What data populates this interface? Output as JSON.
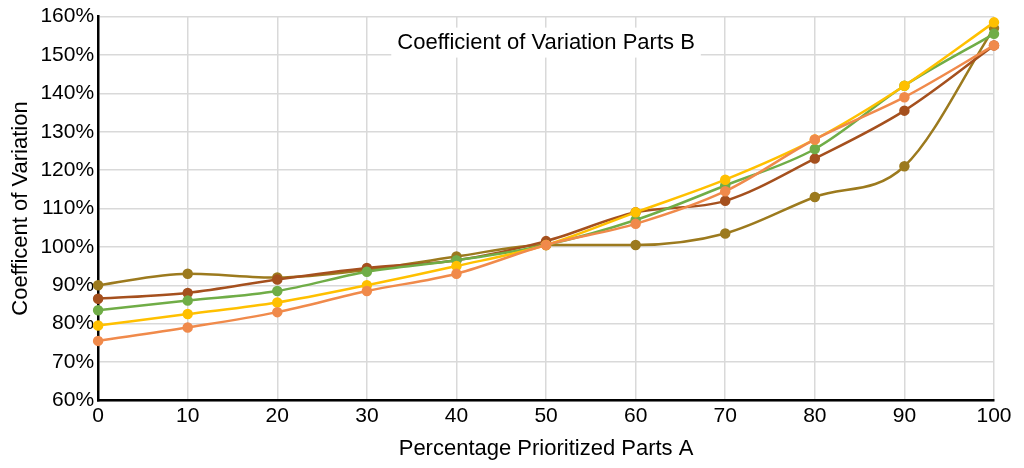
{
  "chart_data": {
    "type": "line",
    "title": "Coefficient of Variation Parts B",
    "x_label": "Percentage Prioritized Parts A",
    "y_label": "Coefficent of Variation",
    "x": [
      0,
      10,
      20,
      30,
      40,
      50,
      60,
      70,
      80,
      90,
      100
    ],
    "series": [
      {
        "color": "#f08a4b",
        "values": [
          75.5,
          79,
          83,
          88.5,
          93,
          100.5,
          106,
          114.5,
          128,
          139,
          152.5
        ]
      },
      {
        "color": "#ffc000",
        "values": [
          79.5,
          82.5,
          85.5,
          90,
          95,
          100.5,
          109,
          117.5,
          128,
          142,
          158.5
        ]
      },
      {
        "color": "#70ad47",
        "values": [
          83.5,
          86,
          88.5,
          93.5,
          96.5,
          100.5,
          107,
          116,
          125.5,
          142,
          155.5
        ]
      },
      {
        "color": "#a5501e",
        "values": [
          86.5,
          88,
          91.5,
          94.5,
          96.5,
          101.5,
          109,
          112,
          123,
          135.5,
          152.5
        ]
      },
      {
        "color": "#9c7a1e",
        "values": [
          90,
          93,
          92,
          94,
          97.5,
          100.5,
          100.5,
          103.5,
          113,
          121,
          157
        ]
      }
    ],
    "xlim": [
      0,
      100
    ],
    "xticks": [
      0,
      10,
      20,
      30,
      40,
      50,
      60,
      70,
      80,
      90,
      100
    ],
    "ylim": [
      60,
      160
    ],
    "yticks": [
      {
        "value": 60,
        "label": "60%"
      },
      {
        "value": 70,
        "label": "70%"
      },
      {
        "value": 80,
        "label": "80%"
      },
      {
        "value": 90,
        "label": "90%"
      },
      {
        "value": 100,
        "label": "100%"
      },
      {
        "value": 110,
        "label": "110%"
      },
      {
        "value": 120,
        "label": "120%"
      },
      {
        "value": 130,
        "label": "130%"
      },
      {
        "value": 140,
        "label": "140%"
      },
      {
        "value": 150,
        "label": "150%"
      },
      {
        "value": 160,
        "label": "160%"
      }
    ],
    "grid": true,
    "marker": "circle",
    "line_style": "solid"
  }
}
